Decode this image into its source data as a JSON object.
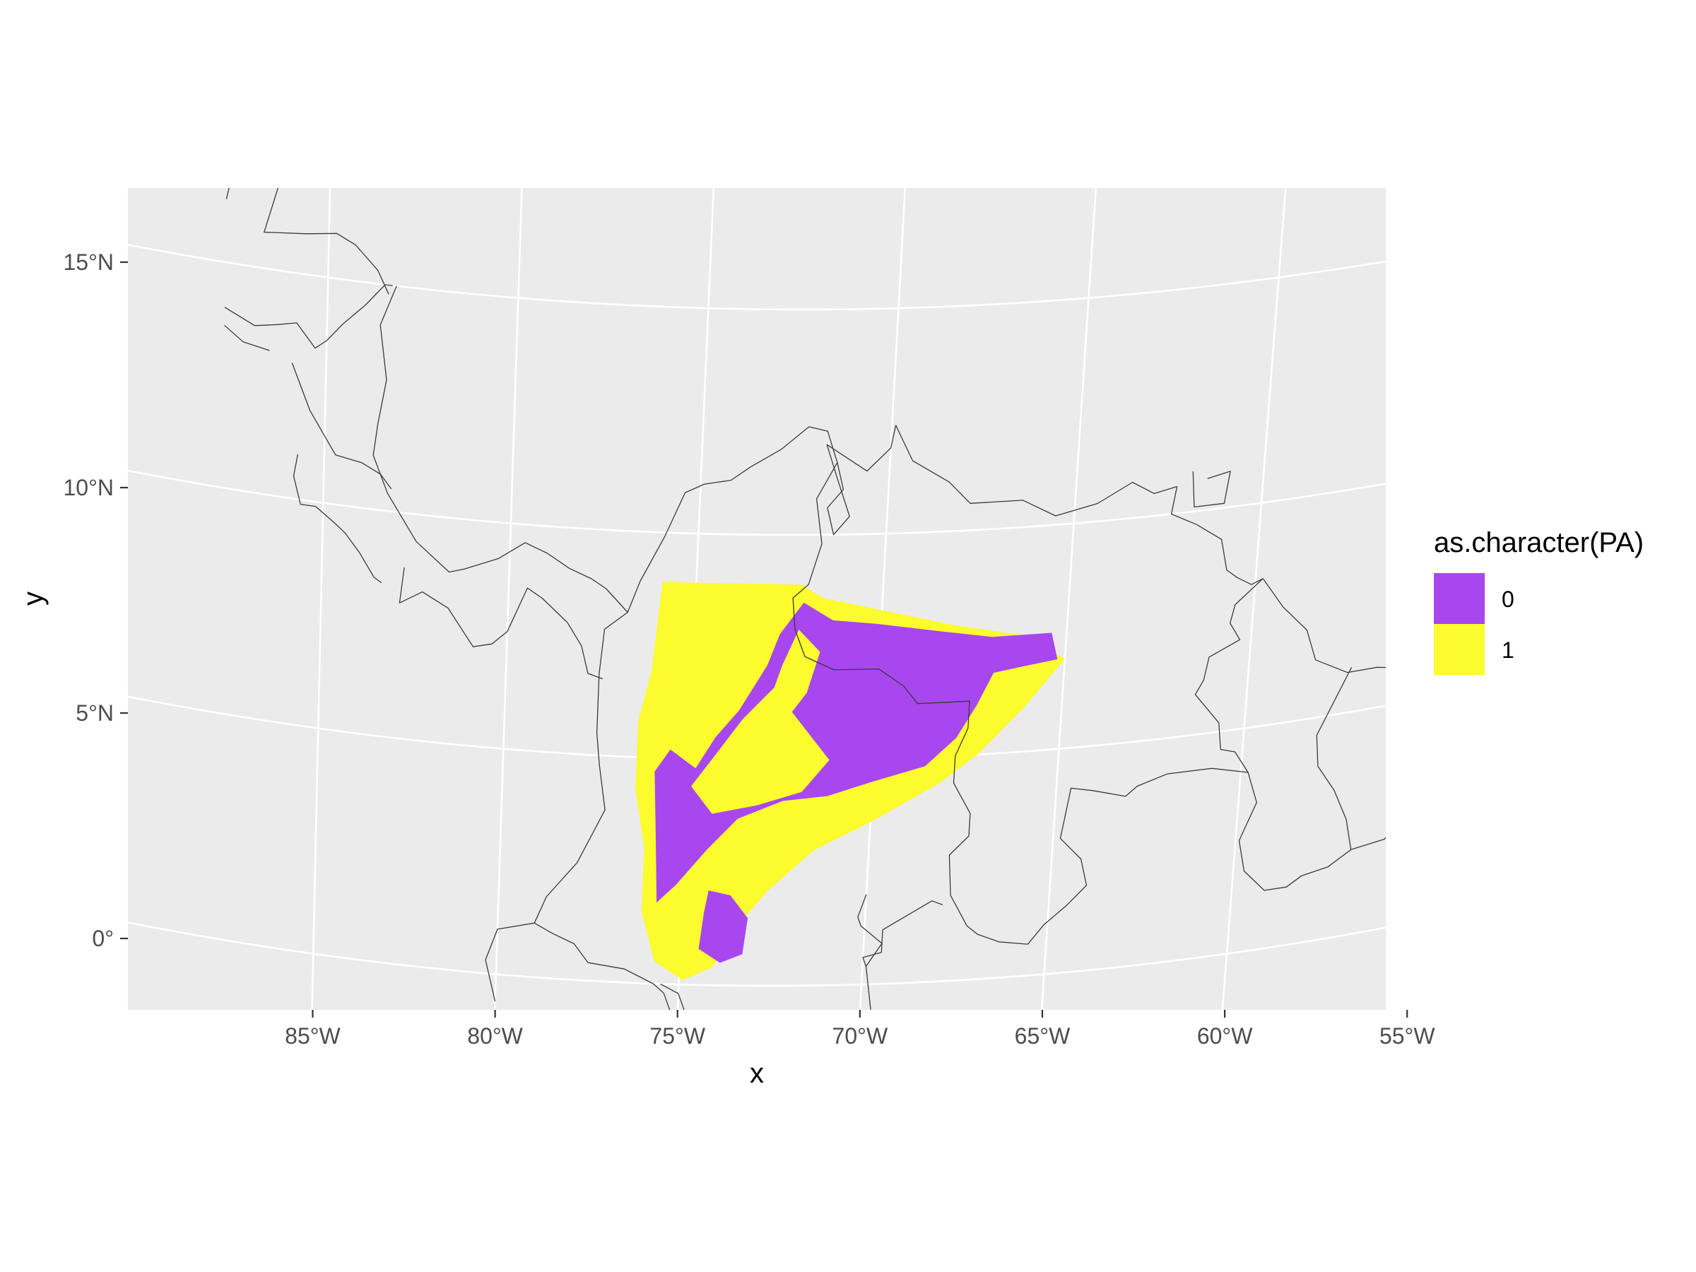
{
  "chart_data": {
    "type": "map",
    "xlabel": "x",
    "ylabel": "y",
    "xlim": [
      -87.7,
      -53.3
    ],
    "ylim": [
      -0.6,
      17.6
    ],
    "x_ticks": [
      {
        "value": -85,
        "label": "85°W"
      },
      {
        "value": -80,
        "label": "80°W"
      },
      {
        "value": -75,
        "label": "75°W"
      },
      {
        "value": -70,
        "label": "70°W"
      },
      {
        "value": -65,
        "label": "65°W"
      },
      {
        "value": -60,
        "label": "60°W"
      },
      {
        "value": -55,
        "label": "55°W"
      }
    ],
    "y_ticks": [
      {
        "value": 0,
        "label": "0°"
      },
      {
        "value": 5,
        "label": "5°N"
      },
      {
        "value": 10,
        "label": "10°N"
      },
      {
        "value": 15,
        "label": "15°N"
      }
    ],
    "grid": true,
    "legend": {
      "title": "as.character(PA)",
      "placement": "right",
      "entries": [
        {
          "label": "0",
          "color": "#A847EE"
        },
        {
          "label": "1",
          "color": "#FBFB2E"
        }
      ]
    },
    "colors": {
      "panel": "#EBEBEB",
      "gridline": "#FFFFFF",
      "border": "#3A3A3A"
    },
    "regions": [
      {
        "value": "1",
        "lonlat": [
          [
            -75.9,
            8.9
          ],
          [
            -72.2,
            8.9
          ],
          [
            -71.6,
            8.6
          ],
          [
            -70.0,
            8.3
          ],
          [
            -68.0,
            7.9
          ],
          [
            -66.2,
            7.6
          ],
          [
            -65.0,
            7.0
          ],
          [
            -66.0,
            6.0
          ],
          [
            -67.2,
            5.0
          ],
          [
            -68.2,
            4.4
          ],
          [
            -70.0,
            3.6
          ],
          [
            -71.5,
            3.0
          ],
          [
            -72.7,
            2.1
          ],
          [
            -73.4,
            1.4
          ],
          [
            -74.1,
            0.4
          ],
          [
            -74.9,
            0.1
          ],
          [
            -75.7,
            0.5
          ],
          [
            -76.1,
            1.6
          ],
          [
            -76.1,
            3.0
          ],
          [
            -76.4,
            4.3
          ],
          [
            -76.4,
            5.8
          ],
          [
            -76.1,
            6.9
          ]
        ]
      },
      {
        "value": "0",
        "lonlat": [
          [
            -72.1,
            8.5
          ],
          [
            -71.3,
            8.1
          ],
          [
            -70.1,
            8.0
          ],
          [
            -68.5,
            7.8
          ],
          [
            -67.0,
            7.6
          ],
          [
            -65.4,
            7.6
          ],
          [
            -65.2,
            7.0
          ],
          [
            -66.1,
            6.9
          ],
          [
            -66.9,
            6.8
          ],
          [
            -67.3,
            6.1
          ],
          [
            -67.8,
            5.4
          ],
          [
            -68.6,
            4.8
          ],
          [
            -70.0,
            4.5
          ],
          [
            -71.2,
            4.2
          ],
          [
            -72.4,
            4.1
          ],
          [
            -73.6,
            3.7
          ],
          [
            -74.4,
            3.0
          ],
          [
            -75.2,
            2.2
          ],
          [
            -75.7,
            1.8
          ],
          [
            -75.8,
            3.3
          ],
          [
            -75.9,
            4.7
          ],
          [
            -75.5,
            5.2
          ],
          [
            -74.8,
            4.8
          ],
          [
            -74.3,
            5.5
          ],
          [
            -73.7,
            6.1
          ],
          [
            -73.0,
            7.1
          ],
          [
            -72.7,
            7.8
          ]
        ]
      },
      {
        "value": "1",
        "lonlat": [
          [
            -74.9,
            4.4
          ],
          [
            -74.3,
            3.8
          ],
          [
            -73.1,
            4.0
          ],
          [
            -71.9,
            4.3
          ],
          [
            -71.2,
            5.0
          ],
          [
            -72.0,
            5.8
          ],
          [
            -72.8,
            6.6
          ],
          [
            -73.6,
            5.9
          ],
          [
            -74.2,
            5.2
          ]
        ]
      },
      {
        "value": "1",
        "lonlat": [
          [
            -72.2,
            7.9
          ],
          [
            -71.6,
            7.4
          ],
          [
            -71.9,
            6.5
          ],
          [
            -72.6,
            5.7
          ],
          [
            -72.9,
            6.3
          ],
          [
            -72.6,
            7.1
          ]
        ]
      },
      {
        "value": "0",
        "lonlat": [
          [
            -74.3,
            2.1
          ],
          [
            -73.7,
            2.0
          ],
          [
            -73.2,
            1.5
          ],
          [
            -73.3,
            0.7
          ],
          [
            -73.9,
            0.5
          ],
          [
            -74.5,
            0.8
          ],
          [
            -74.4,
            1.6
          ]
        ]
      }
    ],
    "countries": [
      [
        [
          -87.7,
          16.4
        ],
        [
          -87.4,
          17.6
        ]
      ],
      [
        [
          -86.1,
          17.6
        ],
        [
          -86.7,
          15.8
        ],
        [
          -85.6,
          15.9
        ],
        [
          -84.8,
          16.0
        ],
        [
          -84.3,
          15.8
        ],
        [
          -83.7,
          15.3
        ],
        [
          -83.4,
          14.8
        ]
      ],
      [
        [
          -87.7,
          14.0
        ],
        [
          -86.9,
          13.7
        ],
        [
          -86.3,
          13.8
        ],
        [
          -85.8,
          13.9
        ],
        [
          -85.3,
          13.4
        ],
        [
          -85.0,
          13.6
        ],
        [
          -84.6,
          14.0
        ],
        [
          -84.0,
          14.5
        ],
        [
          -83.5,
          15.0
        ],
        [
          -83.3,
          15.0
        ]
      ],
      [
        [
          -87.7,
          13.6
        ],
        [
          -87.2,
          13.3
        ],
        [
          -86.5,
          13.2
        ]
      ],
      [
        [
          -83.2,
          15.0
        ],
        [
          -83.6,
          14.1
        ],
        [
          -83.4,
          12.9
        ],
        [
          -83.6,
          11.9
        ],
        [
          -83.7,
          11.2
        ],
        [
          -83.3,
          10.4
        ]
      ],
      [
        [
          -85.9,
          13.0
        ],
        [
          -85.7,
          12.6
        ],
        [
          -85.4,
          12.0
        ],
        [
          -84.7,
          11.1
        ],
        [
          -84.0,
          11.0
        ],
        [
          -83.5,
          10.8
        ],
        [
          -83.2,
          10.5
        ]
      ],
      [
        [
          -85.7,
          11.0
        ],
        [
          -85.8,
          10.5
        ],
        [
          -85.6,
          9.9
        ],
        [
          -85.2,
          9.9
        ],
        [
          -84.7,
          9.6
        ],
        [
          -84.4,
          9.4
        ],
        [
          -84.0,
          9.0
        ],
        [
          -83.6,
          8.5
        ],
        [
          -83.4,
          8.4
        ]
      ],
      [
        [
          -83.3,
          10.4
        ],
        [
          -82.5,
          9.4
        ],
        [
          -81.6,
          8.8
        ],
        [
          -81.2,
          8.9
        ],
        [
          -80.3,
          9.2
        ],
        [
          -79.6,
          9.6
        ],
        [
          -79.0,
          9.4
        ],
        [
          -78.4,
          9.1
        ],
        [
          -77.8,
          8.9
        ],
        [
          -77.4,
          8.7
        ]
      ],
      [
        [
          -82.8,
          8.8
        ],
        [
          -82.9,
          8.0
        ],
        [
          -82.3,
          8.3
        ],
        [
          -81.6,
          8.0
        ],
        [
          -80.9,
          7.2
        ],
        [
          -80.4,
          7.3
        ],
        [
          -80.0,
          7.6
        ],
        [
          -79.5,
          8.6
        ],
        [
          -79.1,
          8.4
        ],
        [
          -78.4,
          7.9
        ],
        [
          -78.0,
          7.4
        ],
        [
          -77.8,
          6.8
        ],
        [
          -77.4,
          6.7
        ]
      ],
      [
        [
          -77.4,
          8.7
        ],
        [
          -76.8,
          8.2
        ],
        [
          -76.5,
          8.9
        ],
        [
          -75.9,
          9.9
        ],
        [
          -75.4,
          10.9
        ],
        [
          -74.9,
          11.1
        ],
        [
          -74.2,
          11.2
        ],
        [
          -73.7,
          11.5
        ],
        [
          -72.9,
          11.9
        ],
        [
          -72.2,
          12.4
        ],
        [
          -71.7,
          12.3
        ],
        [
          -71.4,
          11.6
        ]
      ],
      [
        [
          -76.8,
          8.2
        ],
        [
          -77.4,
          7.8
        ],
        [
          -77.5,
          6.8
        ],
        [
          -77.5,
          5.5
        ],
        [
          -77.4,
          4.8
        ],
        [
          -77.2,
          3.8
        ],
        [
          -77.9,
          2.6
        ],
        [
          -78.7,
          1.8
        ],
        [
          -79.0,
          1.2
        ]
      ],
      [
        [
          -79.0,
          1.2
        ],
        [
          -78.5,
          1.0
        ],
        [
          -77.9,
          0.8
        ],
        [
          -77.5,
          0.4
        ],
        [
          -76.5,
          0.3
        ],
        [
          -75.7,
          0.0
        ],
        [
          -75.4,
          -0.2
        ],
        [
          -75.2,
          -0.6
        ]
      ],
      [
        [
          -80.0,
          -0.6
        ],
        [
          -80.3,
          0.3
        ],
        [
          -80.0,
          1.0
        ],
        [
          -79.0,
          1.2
        ]
      ],
      [
        [
          -74.8,
          -0.6
        ],
        [
          -75.0,
          -0.2
        ],
        [
          -75.5,
          0.0
        ]
      ],
      [
        [
          -71.4,
          11.6
        ],
        [
          -71.9,
          10.8
        ],
        [
          -71.7,
          9.8
        ],
        [
          -72.0,
          8.9
        ],
        [
          -72.4,
          8.6
        ],
        [
          -72.3,
          7.9
        ],
        [
          -72.0,
          7.3
        ],
        [
          -71.2,
          7.0
        ],
        [
          -70.0,
          7.0
        ],
        [
          -69.3,
          6.6
        ],
        [
          -68.9,
          6.2
        ],
        [
          -68.1,
          6.2
        ],
        [
          -67.5,
          6.2
        ],
        [
          -67.5,
          5.6
        ],
        [
          -67.8,
          5.0
        ],
        [
          -67.8,
          4.4
        ],
        [
          -67.3,
          3.7
        ],
        [
          -67.3,
          3.2
        ],
        [
          -67.8,
          2.8
        ],
        [
          -67.7,
          1.9
        ],
        [
          -67.2,
          1.2
        ],
        [
          -66.9,
          1.0
        ]
      ],
      [
        [
          -69.7,
          -0.6
        ],
        [
          -69.9,
          0.4
        ],
        [
          -70.0,
          0.6
        ],
        [
          -69.5,
          0.7
        ],
        [
          -69.5,
          1.2
        ],
        [
          -68.2,
          1.8
        ],
        [
          -67.9,
          1.7
        ]
      ],
      [
        [
          -71.4,
          11.6
        ],
        [
          -71.2,
          11.0
        ],
        [
          -71.6,
          10.6
        ],
        [
          -71.4,
          10.0
        ],
        [
          -71.0,
          10.4
        ],
        [
          -71.4,
          11.3
        ],
        [
          -71.7,
          12.0
        ],
        [
          -70.6,
          11.4
        ],
        [
          -70.0,
          11.9
        ],
        [
          -69.9,
          12.4
        ],
        [
          -69.4,
          11.6
        ],
        [
          -68.4,
          11.1
        ],
        [
          -67.8,
          10.6
        ],
        [
          -66.4,
          10.6
        ],
        [
          -65.5,
          10.2
        ],
        [
          -64.4,
          10.4
        ],
        [
          -63.5,
          10.8
        ],
        [
          -62.9,
          10.5
        ],
        [
          -62.3,
          10.6
        ]
      ],
      [
        [
          -62.3,
          10.6
        ],
        [
          -62.4,
          10.0
        ],
        [
          -61.7,
          9.7
        ],
        [
          -61.0,
          9.3
        ],
        [
          -60.8,
          8.6
        ],
        [
          -60.5,
          8.4
        ],
        [
          -60.1,
          8.2
        ],
        [
          -59.8,
          8.3
        ]
      ],
      [
        [
          -61.9,
          10.9
        ],
        [
          -61.8,
          10.1
        ],
        [
          -61.0,
          10.1
        ],
        [
          -60.9,
          10.8
        ],
        [
          -61.5,
          10.7
        ]
      ],
      [
        [
          -59.8,
          8.3
        ],
        [
          -60.5,
          7.8
        ],
        [
          -60.6,
          7.4
        ],
        [
          -60.3,
          7.0
        ],
        [
          -61.1,
          6.7
        ],
        [
          -61.2,
          6.2
        ],
        [
          -61.4,
          5.9
        ],
        [
          -60.7,
          5.2
        ],
        [
          -60.6,
          4.6
        ],
        [
          -60.2,
          4.5
        ],
        [
          -59.8,
          4.0
        ],
        [
          -59.5,
          3.3
        ],
        [
          -59.9,
          2.5
        ],
        [
          -59.7,
          1.8
        ],
        [
          -59.1,
          1.3
        ],
        [
          -58.5,
          1.3
        ],
        [
          -58.1,
          1.5
        ]
      ],
      [
        [
          -58.1,
          1.5
        ],
        [
          -57.4,
          1.6
        ],
        [
          -56.8,
          1.9
        ],
        [
          -55.9,
          2.0
        ],
        [
          -55.4,
          2.4
        ],
        [
          -55.0,
          2.5
        ],
        [
          -54.4,
          2.4
        ],
        [
          -54.0,
          2.2
        ],
        [
          -53.3,
          2.3
        ]
      ],
      [
        [
          -59.8,
          8.3
        ],
        [
          -59.2,
          7.6
        ],
        [
          -58.5,
          7.0
        ],
        [
          -58.2,
          6.3
        ],
        [
          -57.3,
          5.9
        ],
        [
          -56.5,
          5.9
        ],
        [
          -55.9,
          5.8
        ],
        [
          -55.1,
          5.9
        ],
        [
          -54.0,
          5.7
        ],
        [
          -53.3,
          5.4
        ]
      ],
      [
        [
          -57.2,
          6.0
        ],
        [
          -58.0,
          4.6
        ],
        [
          -57.9,
          3.9
        ],
        [
          -57.4,
          3.3
        ],
        [
          -57.0,
          2.6
        ],
        [
          -56.8,
          1.9
        ]
      ],
      [
        [
          -54.0,
          5.7
        ],
        [
          -54.5,
          4.8
        ],
        [
          -54.4,
          4.2
        ],
        [
          -54.2,
          3.2
        ],
        [
          -54.5,
          2.4
        ]
      ],
      [
        [
          -59.8,
          4.0
        ],
        [
          -60.8,
          4.2
        ],
        [
          -62.0,
          4.2
        ],
        [
          -62.8,
          4.0
        ],
        [
          -63.1,
          3.8
        ],
        [
          -64.0,
          4.0
        ],
        [
          -64.6,
          4.1
        ],
        [
          -64.8,
          3.0
        ],
        [
          -64.2,
          2.5
        ],
        [
          -64.0,
          1.9
        ],
        [
          -64.5,
          1.5
        ],
        [
          -65.1,
          1.1
        ],
        [
          -65.5,
          0.7
        ],
        [
          -66.3,
          0.8
        ],
        [
          -66.9,
          1.0
        ]
      ],
      [
        [
          -69.9,
          0.4
        ],
        [
          -69.5,
          0.9
        ],
        [
          -70.1,
          1.3
        ],
        [
          -70.2,
          1.5
        ],
        [
          -70.0,
          2.0
        ]
      ]
    ]
  }
}
